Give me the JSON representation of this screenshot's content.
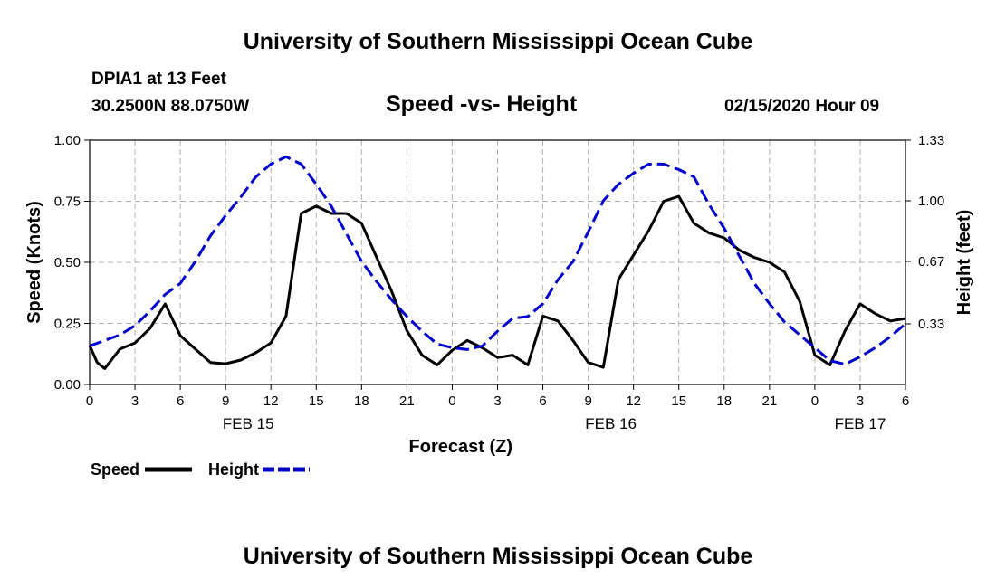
{
  "header": {
    "title": "University of Southern Mississippi Ocean Cube",
    "station": "DPIA1 at 13 Feet",
    "coords": "30.2500N 88.0750W",
    "subtitle": "Speed -vs- Height",
    "datetime": "02/15/2020 Hour 09"
  },
  "footer": {
    "title": "University of Southern Mississippi Ocean Cube"
  },
  "legend": {
    "speed_label": "Speed",
    "height_label": "Height",
    "speed_color": "#000000",
    "height_color": "#0000cc"
  },
  "chart_data": {
    "type": "line",
    "title": "Speed -vs- Height",
    "xlabel": "Forecast (Z)",
    "ylabel": "Speed (Knots)",
    "y2label": "Height (feet)",
    "xlim": [
      0,
      54
    ],
    "ylim": [
      0,
      1.0
    ],
    "y2lim": [
      0,
      1.33
    ],
    "grid": true,
    "x_ticks": [
      0,
      3,
      6,
      9,
      12,
      15,
      18,
      21,
      24,
      27,
      30,
      33,
      36,
      39,
      42,
      45,
      48,
      51,
      54
    ],
    "x_tick_labels": [
      "0",
      "3",
      "6",
      "9",
      "12",
      "15",
      "18",
      "21",
      "0",
      "3",
      "6",
      "9",
      "12",
      "15",
      "18",
      "21",
      "0",
      "3",
      "6"
    ],
    "date_labels": [
      {
        "text": "FEB 15",
        "x": 10.5
      },
      {
        "text": "FEB 16",
        "x": 34.5
      },
      {
        "text": "FEB 17",
        "x": 51
      }
    ],
    "y_ticks": [
      0,
      0.25,
      0.5,
      0.75,
      1.0
    ],
    "y_tick_labels": [
      "0.00",
      "0.25",
      "0.50",
      "0.75",
      "1.00"
    ],
    "y2_ticks": [
      0.33,
      0.67,
      1.0,
      1.33
    ],
    "y2_tick_labels": [
      "0.33",
      "0.67",
      "1.00",
      "1.33"
    ],
    "series": [
      {
        "name": "Speed",
        "axis": "left",
        "x": [
          0,
          0.5,
          1,
          2,
          3,
          4,
          5,
          6,
          7,
          8,
          9,
          10,
          11,
          12,
          13,
          14,
          15,
          16,
          17,
          18,
          19,
          20,
          21,
          22,
          23,
          24,
          25,
          26,
          27,
          28,
          29,
          30,
          31,
          32,
          33,
          34,
          35,
          36,
          37,
          38,
          39,
          40,
          41,
          42,
          43,
          44,
          45,
          46,
          47,
          48,
          49,
          50,
          51,
          52,
          53,
          54
        ],
        "y": [
          0.16,
          0.09,
          0.065,
          0.145,
          0.17,
          0.23,
          0.33,
          0.2,
          0.145,
          0.09,
          0.085,
          0.1,
          0.13,
          0.17,
          0.28,
          0.7,
          0.73,
          0.7,
          0.7,
          0.66,
          0.52,
          0.38,
          0.22,
          0.12,
          0.08,
          0.14,
          0.18,
          0.15,
          0.11,
          0.12,
          0.08,
          0.28,
          0.26,
          0.18,
          0.09,
          0.07,
          0.43,
          0.53,
          0.63,
          0.75,
          0.77,
          0.66,
          0.62,
          0.6,
          0.55,
          0.52,
          0.5,
          0.46,
          0.34,
          0.12,
          0.08,
          0.22,
          0.33,
          0.29,
          0.26,
          0.27
        ]
      },
      {
        "name": "Height",
        "axis": "right",
        "x": [
          0,
          1,
          2,
          3,
          4,
          5,
          6,
          7,
          8,
          9,
          10,
          11,
          12,
          13,
          14,
          15,
          16,
          17,
          18,
          19,
          20,
          21,
          22,
          23,
          24,
          25,
          26,
          27,
          28,
          29,
          30,
          31,
          32,
          33,
          34,
          35,
          36,
          37,
          38,
          39,
          40,
          41,
          42,
          43,
          44,
          45,
          46,
          47,
          48,
          49,
          50,
          51,
          52,
          53,
          54
        ],
        "y": [
          0.21,
          0.24,
          0.27,
          0.32,
          0.4,
          0.49,
          0.55,
          0.67,
          0.81,
          0.92,
          1.02,
          1.13,
          1.2,
          1.24,
          1.2,
          1.09,
          0.97,
          0.82,
          0.67,
          0.56,
          0.46,
          0.37,
          0.29,
          0.22,
          0.2,
          0.19,
          0.21,
          0.29,
          0.36,
          0.37,
          0.44,
          0.57,
          0.67,
          0.83,
          1.0,
          1.09,
          1.15,
          1.2,
          1.2,
          1.17,
          1.13,
          0.98,
          0.85,
          0.7,
          0.55,
          0.44,
          0.34,
          0.27,
          0.2,
          0.13,
          0.11,
          0.15,
          0.2,
          0.26,
          0.33
        ]
      }
    ]
  }
}
